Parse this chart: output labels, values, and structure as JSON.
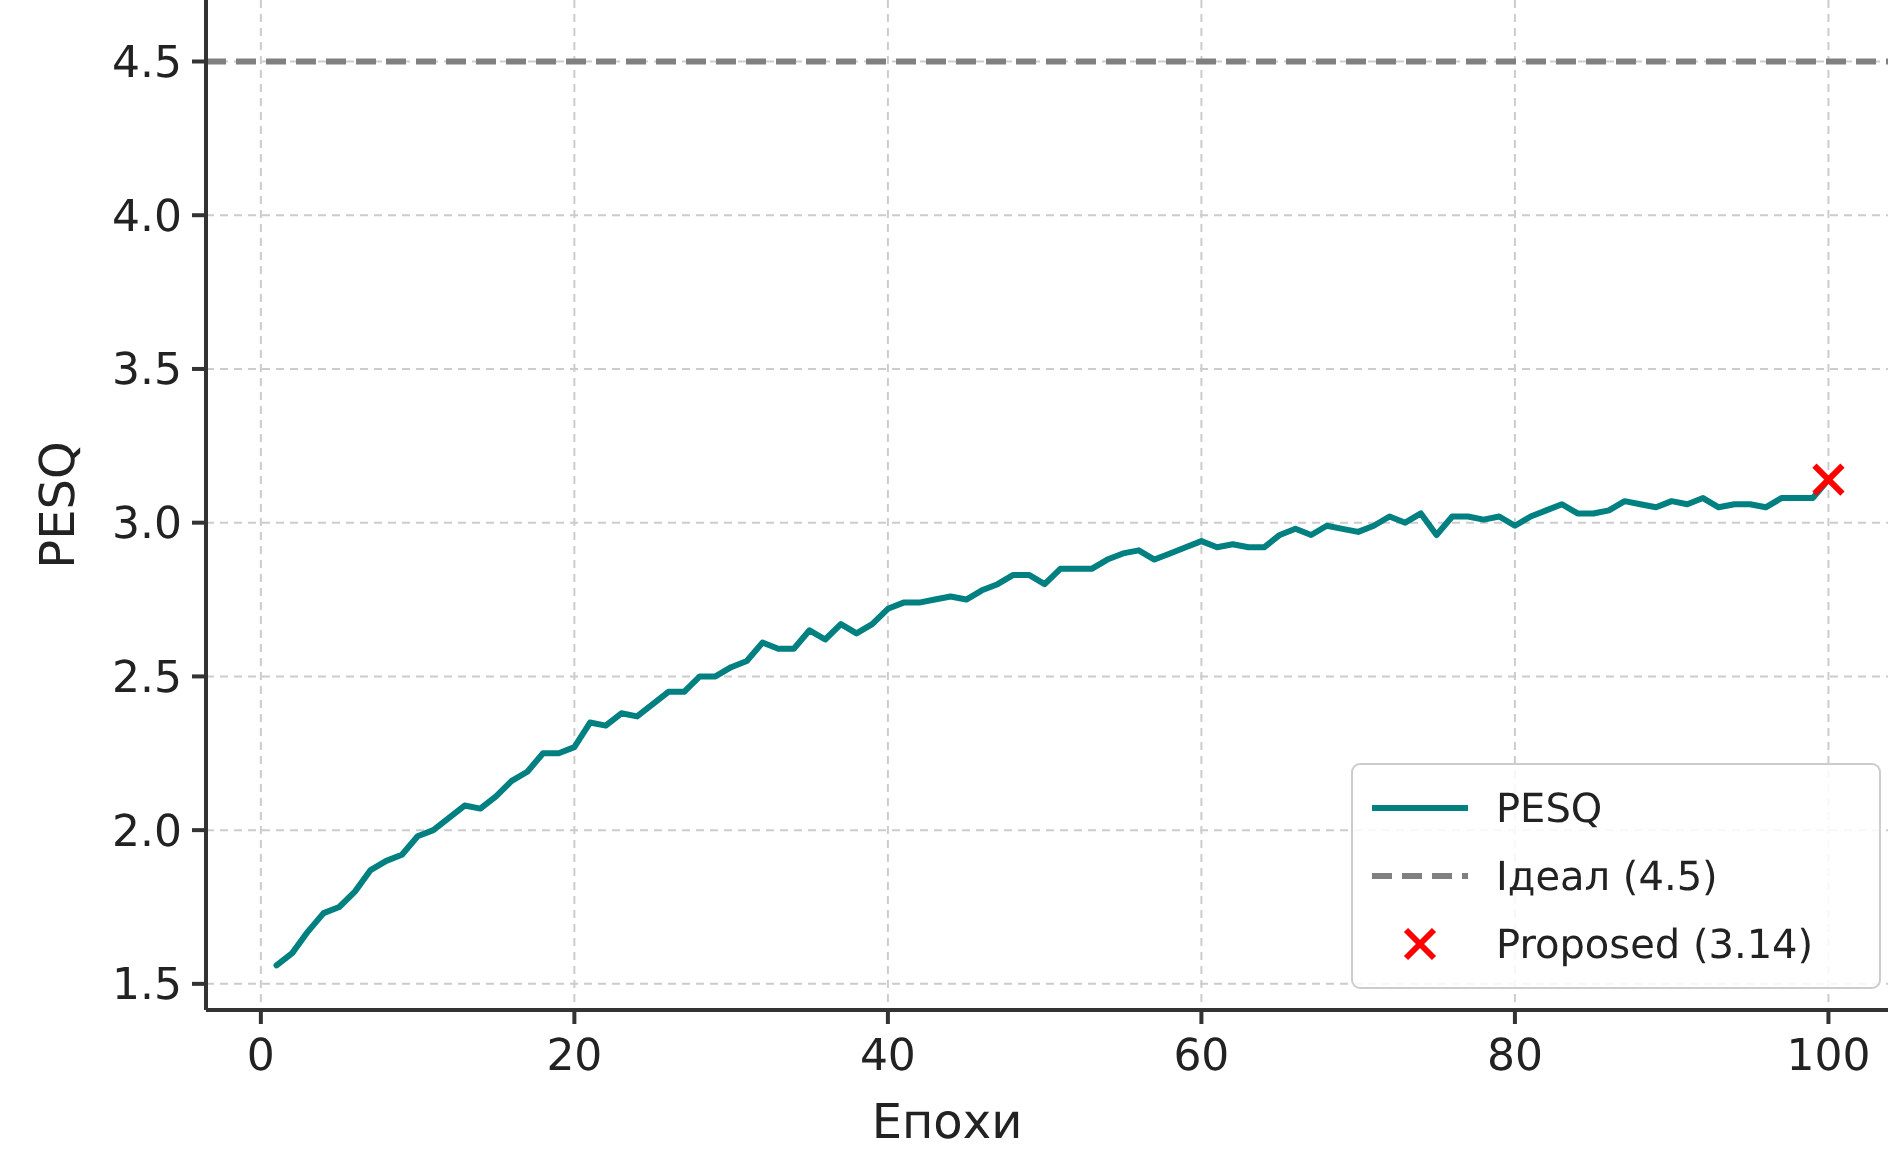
{
  "chart_data": {
    "type": "line",
    "xlabel": "Епохи",
    "ylabel": "PESQ",
    "x": [
      1,
      2,
      3,
      4,
      5,
      6,
      7,
      8,
      9,
      10,
      11,
      12,
      13,
      14,
      15,
      16,
      17,
      18,
      19,
      20,
      21,
      22,
      23,
      24,
      25,
      26,
      27,
      28,
      29,
      30,
      31,
      32,
      33,
      34,
      35,
      36,
      37,
      38,
      39,
      40,
      41,
      42,
      43,
      44,
      45,
      46,
      47,
      48,
      49,
      50,
      51,
      52,
      53,
      54,
      55,
      56,
      57,
      58,
      59,
      60,
      61,
      62,
      63,
      64,
      65,
      66,
      67,
      68,
      69,
      70,
      71,
      72,
      73,
      74,
      75,
      76,
      77,
      78,
      79,
      80,
      81,
      82,
      83,
      84,
      85,
      86,
      87,
      88,
      89,
      90,
      91,
      92,
      93,
      94,
      95,
      96,
      97,
      98,
      99,
      100
    ],
    "series": [
      {
        "name": "PESQ",
        "color": "#008080",
        "values": [
          1.56,
          1.6,
          1.67,
          1.73,
          1.75,
          1.8,
          1.87,
          1.9,
          1.92,
          1.98,
          2.0,
          2.04,
          2.08,
          2.07,
          2.11,
          2.16,
          2.19,
          2.25,
          2.25,
          2.27,
          2.35,
          2.34,
          2.38,
          2.37,
          2.41,
          2.45,
          2.45,
          2.5,
          2.5,
          2.53,
          2.55,
          2.61,
          2.59,
          2.59,
          2.65,
          2.62,
          2.67,
          2.64,
          2.67,
          2.72,
          2.74,
          2.74,
          2.75,
          2.76,
          2.75,
          2.78,
          2.8,
          2.83,
          2.83,
          2.8,
          2.85,
          2.85,
          2.85,
          2.88,
          2.9,
          2.91,
          2.88,
          2.9,
          2.92,
          2.94,
          2.92,
          2.93,
          2.92,
          2.92,
          2.96,
          2.98,
          2.96,
          2.99,
          2.98,
          2.97,
          2.99,
          3.02,
          3.0,
          3.03,
          2.96,
          3.02,
          3.02,
          3.01,
          3.02,
          2.99,
          3.02,
          3.04,
          3.06,
          3.03,
          3.03,
          3.04,
          3.07,
          3.06,
          3.05,
          3.07,
          3.06,
          3.08,
          3.05,
          3.06,
          3.06,
          3.05,
          3.08,
          3.08,
          3.08,
          3.14
        ]
      },
      {
        "name": "Proposed (3.14)",
        "type": "scatter",
        "marker": "cross",
        "color": "#ff0000",
        "x": [
          100
        ],
        "values": [
          3.14
        ]
      }
    ],
    "ref_lines": [
      {
        "axis": "y",
        "value": 4.5,
        "label": "Ідеал (4.5)",
        "color": "#808080",
        "line_style": "dashed"
      }
    ],
    "xlim": [
      -3.5,
      103.8
    ],
    "xticks": [
      0,
      20,
      40,
      60,
      80,
      100
    ],
    "ylim": [
      1.415,
      4.7
    ],
    "yticks": [
      {
        "value": 1.5,
        "label": "1.5"
      },
      {
        "value": 2.0,
        "label": "2.0"
      },
      {
        "value": 2.5,
        "label": "2.5"
      },
      {
        "value": 3.0,
        "label": "3.0"
      },
      {
        "value": 3.5,
        "label": "3.5"
      },
      {
        "value": 4.0,
        "label": "4.0"
      },
      {
        "value": 4.5,
        "label": "4.5"
      }
    ],
    "grid": true,
    "legend": "bottom right"
  }
}
